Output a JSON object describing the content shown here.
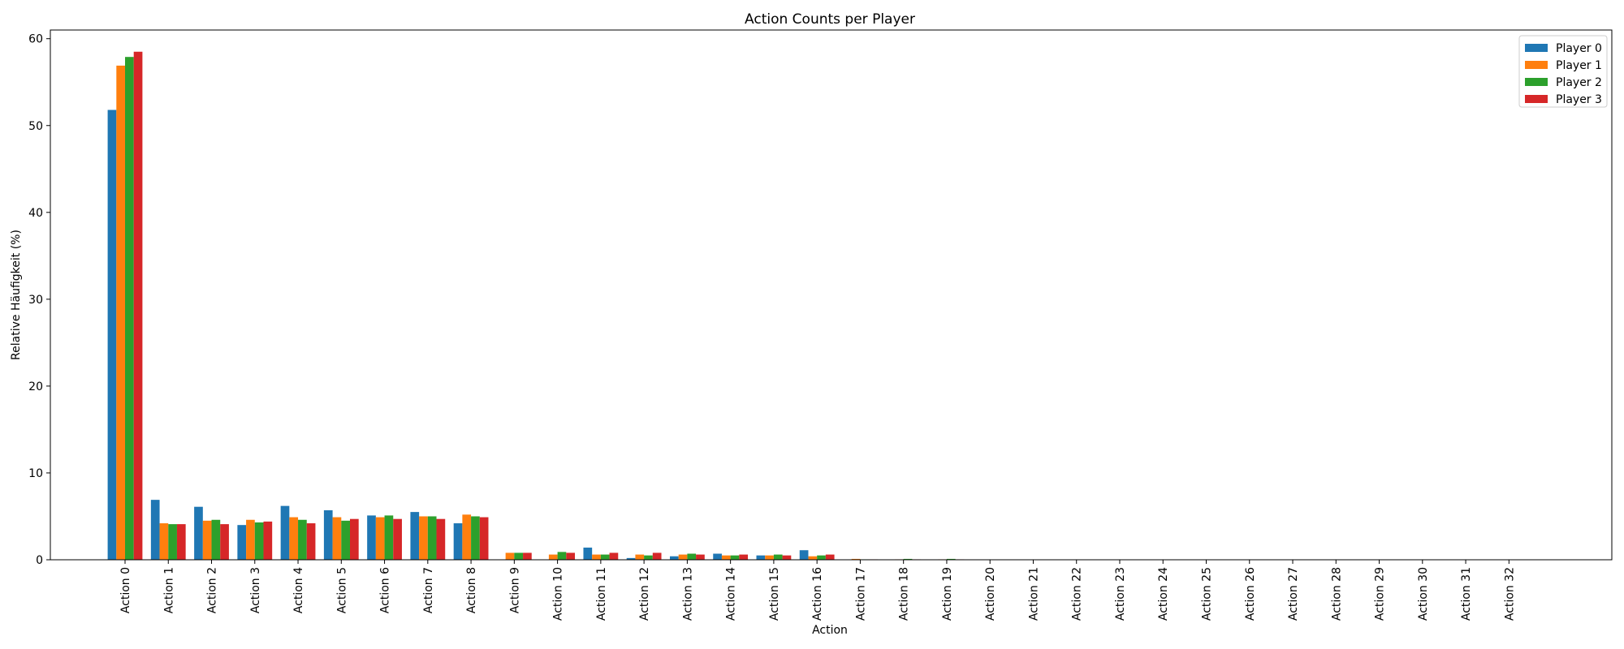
{
  "chart_data": {
    "type": "bar",
    "title": "Action Counts per Player",
    "xlabel": "Action",
    "ylabel": "Relative Häufigkeit (%)",
    "ylim": [
      0,
      61
    ],
    "yticks": [
      0,
      10,
      20,
      30,
      40,
      50,
      60
    ],
    "grid": false,
    "legend_position": "top-right",
    "categories": [
      "Action 0",
      "Action 1",
      "Action 2",
      "Action 3",
      "Action 4",
      "Action 5",
      "Action 6",
      "Action 7",
      "Action 8",
      "Action 9",
      "Action 10",
      "Action 11",
      "Action 12",
      "Action 13",
      "Action 14",
      "Action 15",
      "Action 16",
      "Action 17",
      "Action 18",
      "Action 19",
      "Action 20",
      "Action 21",
      "Action 22",
      "Action 23",
      "Action 24",
      "Action 25",
      "Action 26",
      "Action 27",
      "Action 28",
      "Action 29",
      "Action 30",
      "Action 31",
      "Action 32"
    ],
    "series": [
      {
        "name": "Player 0",
        "color": "#1f77b4",
        "values": [
          51.8,
          6.9,
          6.1,
          4.0,
          6.2,
          5.7,
          5.1,
          5.5,
          4.2,
          0.0,
          0.0,
          1.4,
          0.2,
          0.4,
          0.7,
          0.5,
          1.1,
          0.0,
          0.0,
          0.0,
          0,
          0,
          0,
          0,
          0,
          0,
          0,
          0,
          0,
          0,
          0,
          0,
          0
        ]
      },
      {
        "name": "Player 1",
        "color": "#ff7f0e",
        "values": [
          56.9,
          4.2,
          4.5,
          4.6,
          4.9,
          4.9,
          4.9,
          5.0,
          5.2,
          0.8,
          0.6,
          0.6,
          0.6,
          0.6,
          0.5,
          0.5,
          0.4,
          0.1,
          0.05,
          0.05,
          0,
          0,
          0,
          0,
          0,
          0,
          0,
          0,
          0,
          0,
          0,
          0,
          0
        ]
      },
      {
        "name": "Player 2",
        "color": "#2ca02c",
        "values": [
          57.9,
          4.1,
          4.6,
          4.3,
          4.6,
          4.5,
          5.1,
          5.0,
          5.0,
          0.8,
          0.9,
          0.6,
          0.5,
          0.7,
          0.5,
          0.6,
          0.5,
          0.05,
          0.1,
          0.1,
          0,
          0,
          0,
          0,
          0,
          0,
          0,
          0,
          0,
          0,
          0,
          0,
          0
        ]
      },
      {
        "name": "Player 3",
        "color": "#d62728",
        "values": [
          58.5,
          4.1,
          4.1,
          4.4,
          4.2,
          4.7,
          4.7,
          4.7,
          4.9,
          0.8,
          0.8,
          0.8,
          0.8,
          0.6,
          0.6,
          0.5,
          0.6,
          0.05,
          0.05,
          0.05,
          0,
          0,
          0,
          0,
          0,
          0,
          0,
          0,
          0,
          0,
          0,
          0,
          0
        ]
      }
    ]
  }
}
